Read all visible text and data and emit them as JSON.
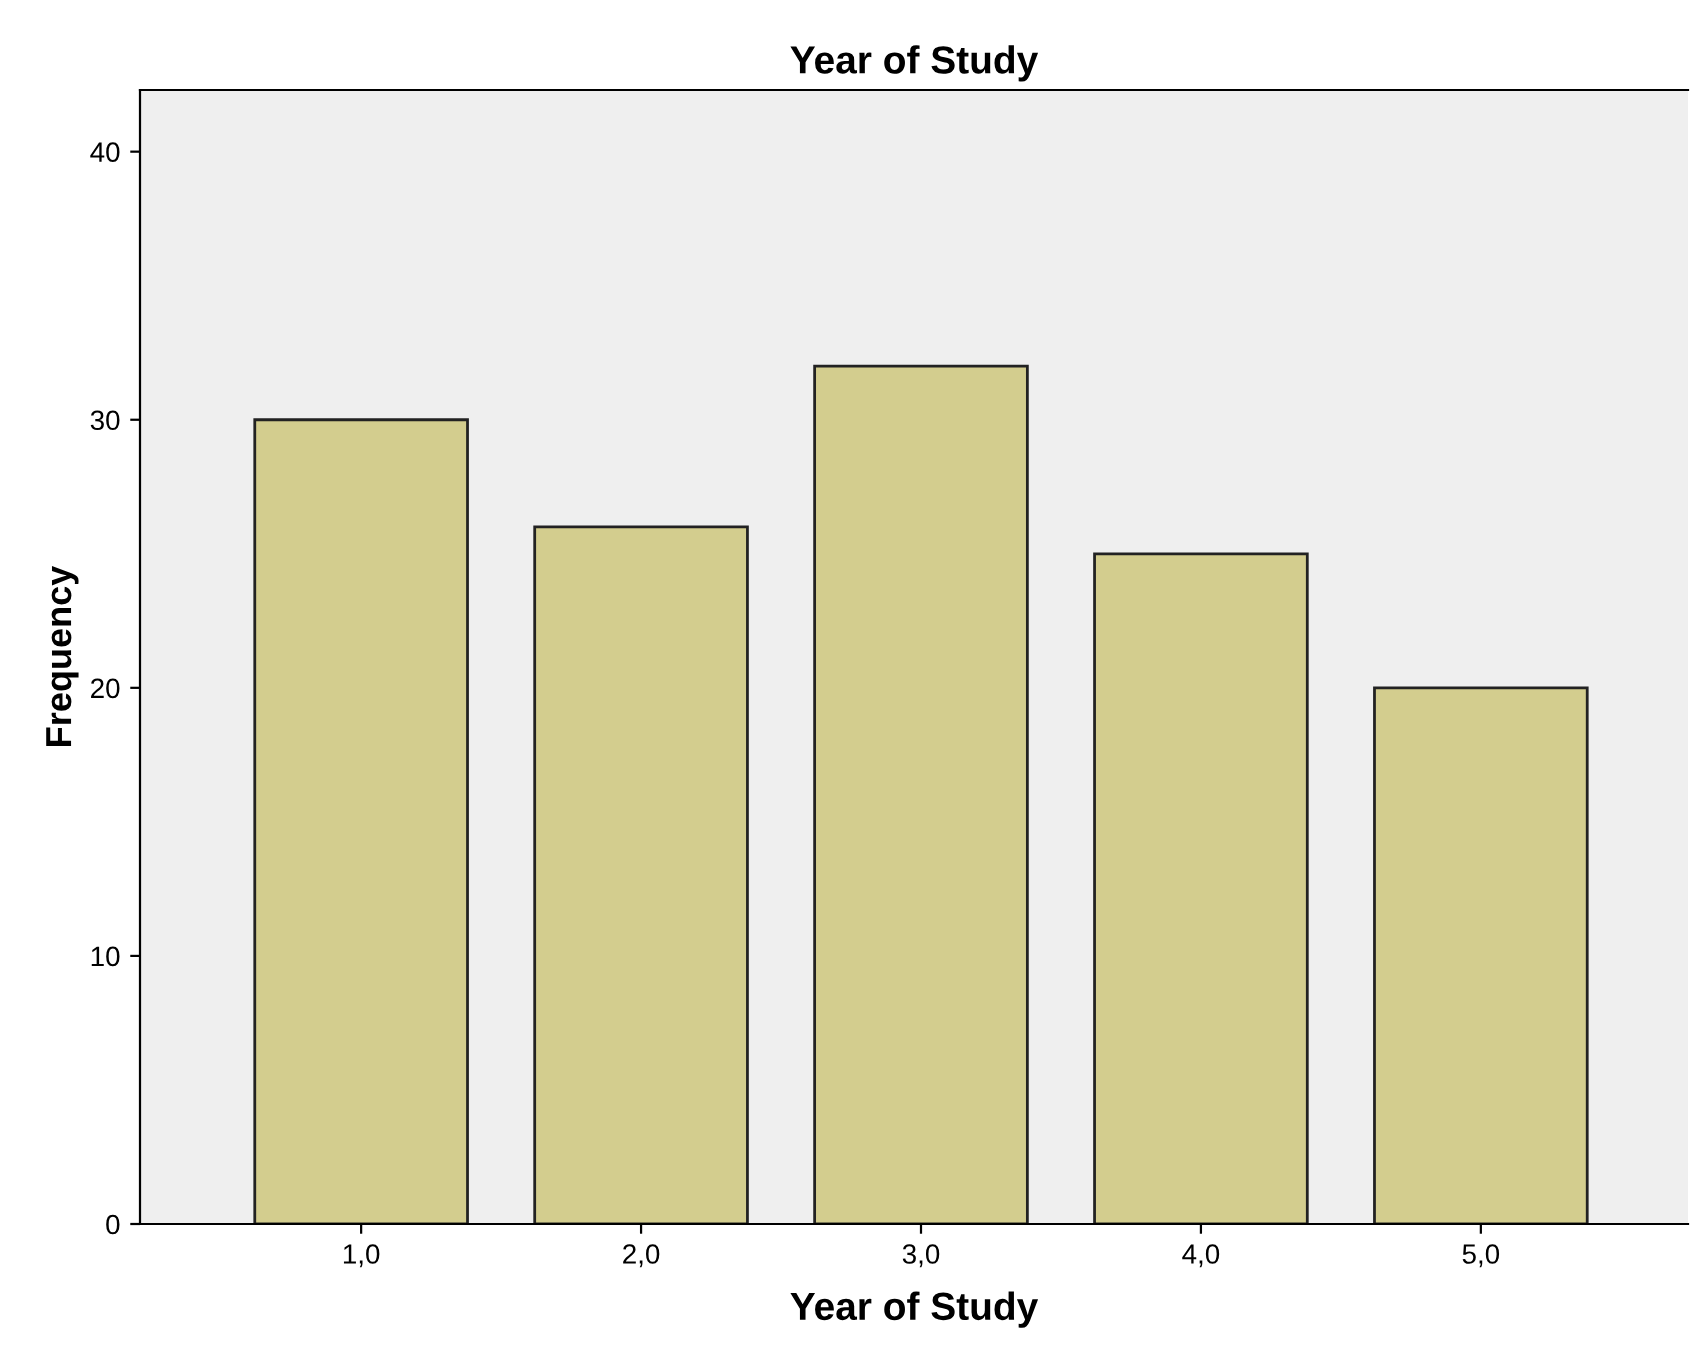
{
  "chart_data": {
    "type": "bar",
    "title": "Year of Study",
    "xlabel": "Year of Study",
    "ylabel": "Frequency",
    "categories": [
      "1,0",
      "2,0",
      "3,0",
      "4,0",
      "5,0"
    ],
    "values": [
      30,
      26,
      32,
      25,
      20
    ],
    "color": "#d3cd8e",
    "ylim": [
      0,
      42.3
    ],
    "yticks": [
      0,
      10,
      20,
      30,
      40
    ],
    "grid": false,
    "legend": false
  }
}
